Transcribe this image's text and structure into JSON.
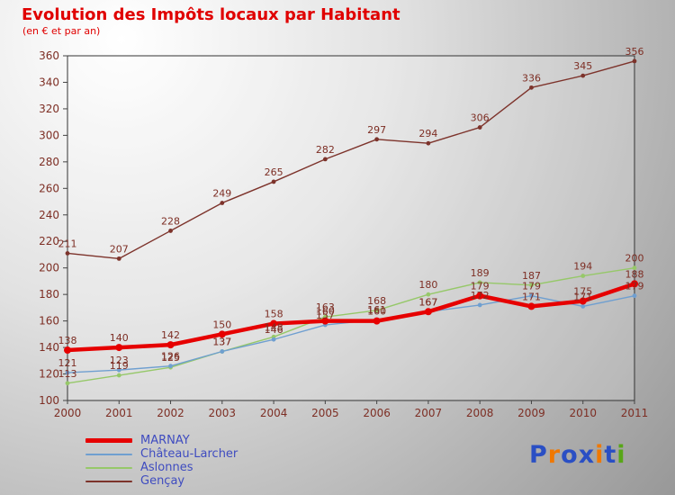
{
  "title": "Evolution des Impôts locaux par Habitant",
  "subtitle": "(en € et par an)",
  "colors": {
    "title": "#e00000",
    "subtitle": "#e00000",
    "axis_label": "#7d2e24",
    "value_label": "#7d2e24",
    "legend_text": "#3f4cc0",
    "plot_border": "#333333"
  },
  "chart_data": {
    "type": "line",
    "title": "Evolution des Impôts locaux par Habitant",
    "subtitle": "(en € et par an)",
    "xlabel": "",
    "ylabel": "",
    "x": [
      2000,
      2001,
      2002,
      2003,
      2004,
      2005,
      2006,
      2007,
      2008,
      2009,
      2010,
      2011
    ],
    "ylim": [
      100,
      360
    ],
    "ytick_step": 20,
    "grid": false,
    "legend_position": "bottom-left",
    "series": [
      {
        "name": "MARNAY",
        "color": "#e60000",
        "thick": true,
        "values": [
          138,
          140,
          142,
          150,
          158,
          160,
          160,
          167,
          179,
          171,
          175,
          188
        ]
      },
      {
        "name": "Château-Larcher",
        "color": "#6f9fd0",
        "thick": false,
        "values": [
          121,
          123,
          126,
          137,
          146,
          157,
          161,
          167,
          172,
          179,
          171,
          179
        ]
      },
      {
        "name": "Aslonnes",
        "color": "#96c869",
        "thick": false,
        "values": [
          113,
          119,
          125,
          137,
          148,
          163,
          168,
          180,
          189,
          187,
          194,
          200
        ]
      },
      {
        "name": "Gençay",
        "color": "#7d332b",
        "thick": false,
        "values": [
          211,
          207,
          228,
          249,
          265,
          282,
          297,
          294,
          306,
          336,
          345,
          356
        ]
      }
    ]
  },
  "legend": {
    "items": [
      "MARNAY",
      "Château-Larcher",
      "Aslonnes",
      "Gençay"
    ]
  },
  "logo": {
    "name": "Proxiti",
    "letters": [
      {
        "ch": "P",
        "color": "#2a4fc4"
      },
      {
        "ch": "r",
        "color": "#f07800"
      },
      {
        "ch": "o",
        "color": "#2a4fc4"
      },
      {
        "ch": "x",
        "color": "#2a4fc4"
      },
      {
        "ch": "i",
        "color": "#f07800"
      },
      {
        "ch": "t",
        "color": "#2a4fc4"
      },
      {
        "ch": "i",
        "color": "#58a618"
      }
    ]
  }
}
